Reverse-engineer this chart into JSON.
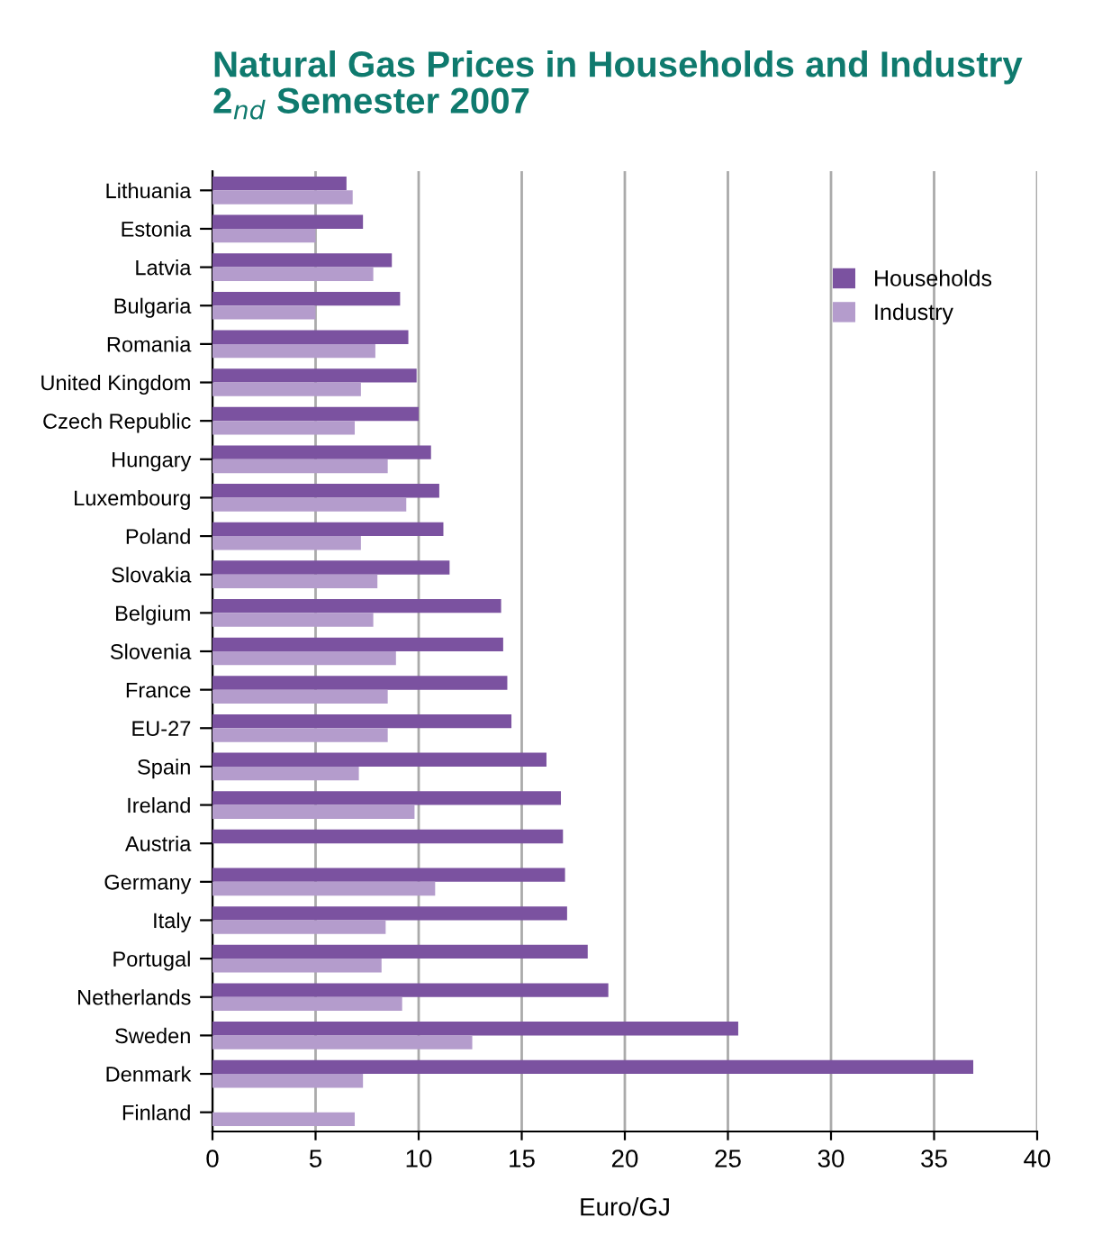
{
  "chart_data": {
    "type": "bar",
    "orientation": "horizontal",
    "title": "Natural Gas Prices in Households and Industry\n2$_{nd}$ Semester 2007",
    "xlabel": "Euro/GJ",
    "categories": [
      "Lithuania",
      "Estonia",
      "Latvia",
      "Bulgaria",
      "Romania",
      "United Kingdom",
      "Czech Republic",
      "Hungary",
      "Luxembourg",
      "Poland",
      "Slovakia",
      "Belgium",
      "Slovenia",
      "France",
      "EU-27",
      "Spain",
      "Ireland",
      "Austria",
      "Germany",
      "Italy",
      "Portugal",
      "Netherlands",
      "Sweden",
      "Denmark",
      "Finland"
    ],
    "series": [
      {
        "name": "Households",
        "color": "#7b52a0",
        "values": [
          6.5,
          7.3,
          8.7,
          9.1,
          9.5,
          9.9,
          10.0,
          10.6,
          11.0,
          11.2,
          11.5,
          14.0,
          14.1,
          14.3,
          14.5,
          16.2,
          16.9,
          17.0,
          17.1,
          17.2,
          18.2,
          19.2,
          25.5,
          36.9,
          null
        ]
      },
      {
        "name": "Industry",
        "color": "#b49ccc",
        "values": [
          6.8,
          5.0,
          7.8,
          5.0,
          7.9,
          7.2,
          6.9,
          8.5,
          9.4,
          7.2,
          8.0,
          7.8,
          8.9,
          8.5,
          8.5,
          7.1,
          9.8,
          null,
          10.8,
          8.4,
          8.2,
          9.2,
          12.6,
          7.3,
          6.9
        ]
      }
    ],
    "xlim": [
      0,
      40
    ],
    "xticks": [
      0,
      5,
      10,
      15,
      20,
      25,
      30,
      35,
      40
    ],
    "grid": "x",
    "legend": "top right"
  }
}
